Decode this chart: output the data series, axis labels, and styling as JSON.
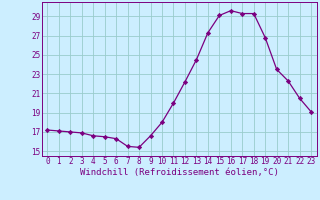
{
  "x": [
    0,
    1,
    2,
    3,
    4,
    5,
    6,
    7,
    8,
    9,
    10,
    11,
    12,
    13,
    14,
    15,
    16,
    17,
    18,
    19,
    20,
    21,
    22,
    23
  ],
  "y": [
    17.2,
    17.1,
    17.0,
    16.9,
    16.6,
    16.5,
    16.3,
    15.5,
    15.4,
    16.6,
    18.0,
    20.0,
    22.2,
    24.5,
    27.3,
    29.1,
    29.6,
    29.3,
    29.3,
    26.8,
    23.5,
    22.3,
    20.5,
    19.1
  ],
  "line_color": "#7B0080",
  "marker": "D",
  "marker_size": 2.2,
  "bg_color": "#cceeff",
  "grid_color": "#99cccc",
  "xlabel": "Windchill (Refroidissement éolien,°C)",
  "ylabel": "",
  "xlim": [
    -0.5,
    23.5
  ],
  "ylim": [
    14.5,
    30.5
  ],
  "yticks": [
    15,
    17,
    19,
    21,
    23,
    25,
    27,
    29
  ],
  "xticks": [
    0,
    1,
    2,
    3,
    4,
    5,
    6,
    7,
    8,
    9,
    10,
    11,
    12,
    13,
    14,
    15,
    16,
    17,
    18,
    19,
    20,
    21,
    22,
    23
  ],
  "tick_label_fontsize": 5.5,
  "xlabel_fontsize": 6.5,
  "tick_color": "#7B0080",
  "spine_color": "#7B0080"
}
